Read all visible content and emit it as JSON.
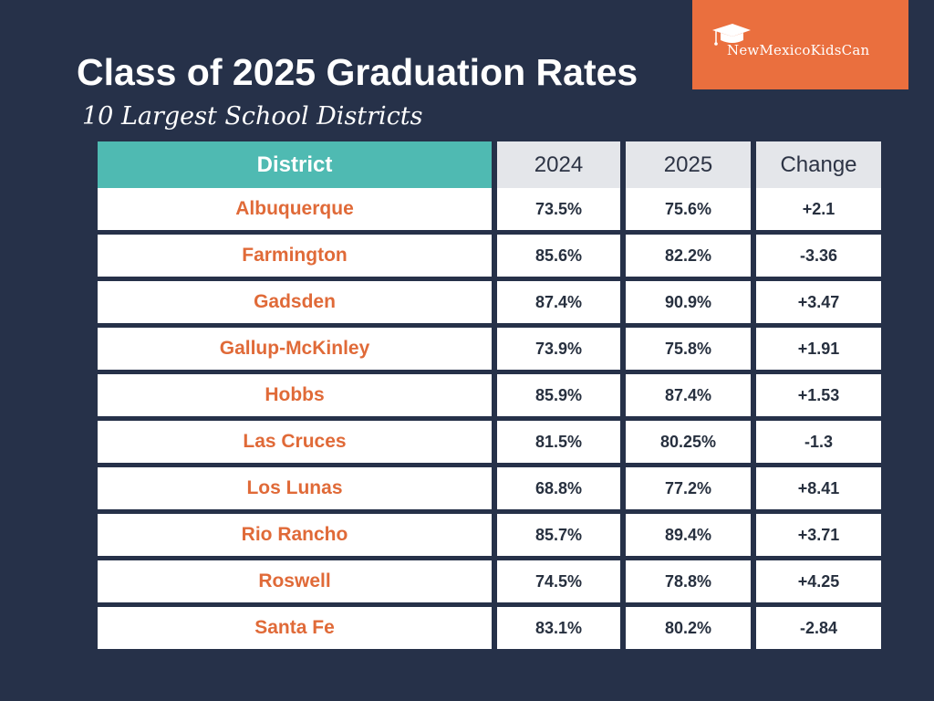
{
  "title": "Class of 2025 Graduation Rates",
  "subtitle": "10 Largest School Districts",
  "logo": {
    "text": "NewMexicoKidsCan",
    "icon": "graduation-cap-icon"
  },
  "colors": {
    "background": "#263149",
    "accent": "#4fbab2",
    "brand": "#ea6f3e",
    "district_text": "#e06a38"
  },
  "table": {
    "headers": [
      "District",
      "2024",
      "2025",
      "Change"
    ],
    "rows": [
      [
        "Albuquerque",
        "73.5%",
        "75.6%",
        "+2.1"
      ],
      [
        "Farmington",
        "85.6%",
        "82.2%",
        "-3.36"
      ],
      [
        "Gadsden",
        "87.4%",
        "90.9%",
        "+3.47"
      ],
      [
        "Gallup-McKinley",
        "73.9%",
        "75.8%",
        "+1.91"
      ],
      [
        "Hobbs",
        "85.9%",
        "87.4%",
        "+1.53"
      ],
      [
        "Las Cruces",
        "81.5%",
        "80.25%",
        "-1.3"
      ],
      [
        "Los Lunas",
        "68.8%",
        "77.2%",
        "+8.41"
      ],
      [
        "Rio Rancho",
        "85.7%",
        "89.4%",
        "+3.71"
      ],
      [
        "Roswell",
        "74.5%",
        "78.8%",
        "+4.25"
      ],
      [
        "Santa Fe",
        "83.1%",
        "80.2%",
        "-2.84"
      ]
    ]
  }
}
